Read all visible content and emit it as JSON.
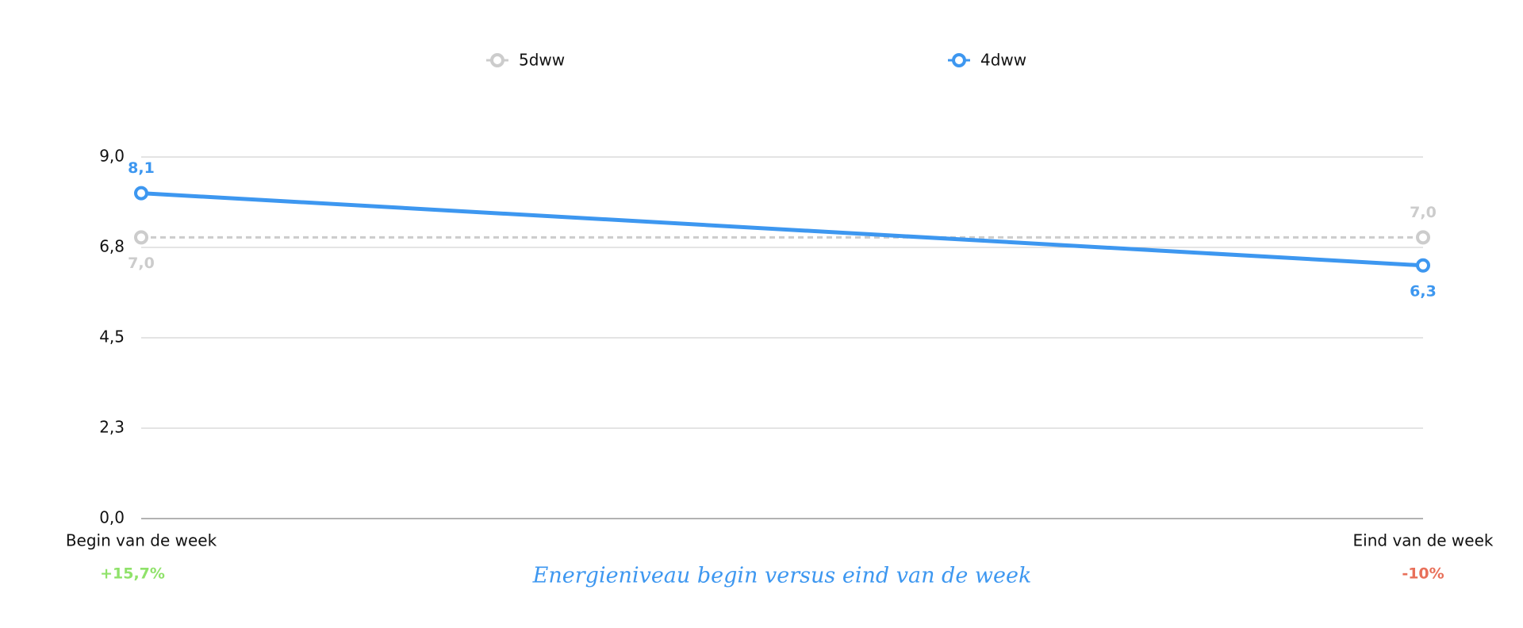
{
  "chart_data": {
    "type": "line",
    "title": "Energieniveau begin versus eind van de week",
    "categories": [
      "Begin van de week",
      "Eind van de week"
    ],
    "series": [
      {
        "name": "5dww",
        "color": "#cccccc",
        "dashed": true,
        "values": [
          7.0,
          7.0
        ],
        "value_labels": [
          "7,0",
          "7,0"
        ]
      },
      {
        "name": "4dww",
        "color": "#3d97f0",
        "dashed": false,
        "values": [
          8.1,
          6.3
        ],
        "value_labels": [
          "8,1",
          "6,3"
        ]
      }
    ],
    "ylim": [
      0,
      9
    ],
    "yticks": [
      {
        "value": 0,
        "label": "0,0"
      },
      {
        "value": 2.25,
        "label": "2,3"
      },
      {
        "value": 4.5,
        "label": "4,5"
      },
      {
        "value": 6.75,
        "label": "6,8"
      },
      {
        "value": 9,
        "label": "9,0"
      }
    ],
    "grid": true,
    "legend": "top",
    "annotations": [
      {
        "text": "+15,7%",
        "color": "#8fe26a"
      },
      {
        "text": "-10%",
        "color": "#e8705a"
      }
    ]
  }
}
